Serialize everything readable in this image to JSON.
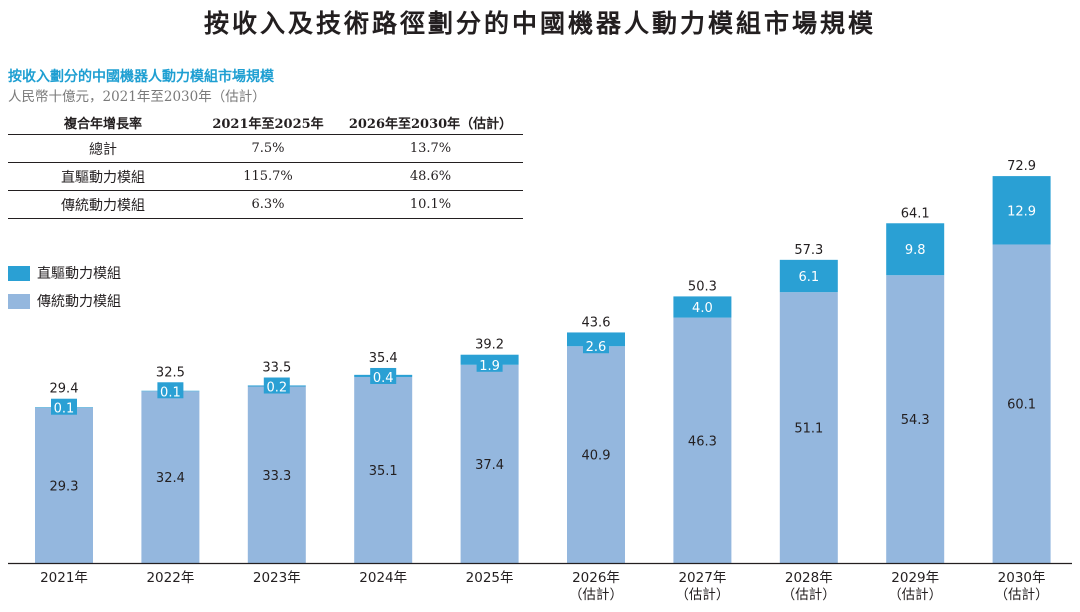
{
  "title": "按收入及技術路徑劃分的中國機器人動力模組市場規模",
  "chart_subtitle": "按收入劃分的中國機器人動力模組市場規模",
  "unit_note": "人民幣十億元，2021年至2030年（估計）",
  "cagr_table": {
    "header": [
      "複合年增長率",
      "2021年至2025年",
      "2026年至2030年（估計）"
    ],
    "rows": [
      {
        "label": "總計",
        "v1": "7.5%",
        "v2": "13.7%"
      },
      {
        "label": "直驅動力模組",
        "v1": "115.7%",
        "v2": "48.6%"
      },
      {
        "label": "傳統動力模組",
        "v1": "6.3%",
        "v2": "10.1%"
      }
    ]
  },
  "colors": {
    "direct": "#2aa0d4",
    "traditional": "#94b7de",
    "axis": "#231f20"
  },
  "chart_data": {
    "type": "bar",
    "stacked": true,
    "categories": [
      [
        "2021年"
      ],
      [
        "2022年"
      ],
      [
        "2023年"
      ],
      [
        "2024年"
      ],
      [
        "2025年"
      ],
      [
        "2026年",
        "（估計）"
      ],
      [
        "2027年",
        "（估計）"
      ],
      [
        "2028年",
        "（估計）"
      ],
      [
        "2029年",
        "（估計）"
      ],
      [
        "2030年",
        "（估計）"
      ]
    ],
    "series": [
      {
        "name": "傳統動力模組",
        "values": [
          29.3,
          32.4,
          33.3,
          35.1,
          37.4,
          40.9,
          46.3,
          51.1,
          54.3,
          60.1
        ]
      },
      {
        "name": "直驅動力模組",
        "values": [
          0.1,
          0.1,
          0.2,
          0.4,
          1.9,
          2.6,
          4.0,
          6.1,
          9.8,
          12.9
        ]
      }
    ],
    "totals": [
      29.4,
      32.5,
      33.5,
      35.4,
      39.2,
      43.6,
      50.3,
      57.3,
      64.1,
      72.9
    ],
    "legend_position": "left",
    "grid": false
  }
}
